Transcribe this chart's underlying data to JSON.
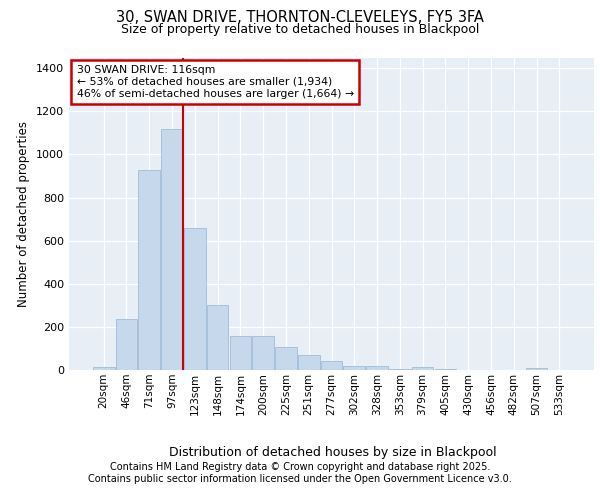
{
  "title_line1": "30, SWAN DRIVE, THORNTON-CLEVELEYS, FY5 3FA",
  "title_line2": "Size of property relative to detached houses in Blackpool",
  "xlabel": "Distribution of detached houses by size in Blackpool",
  "ylabel": "Number of detached properties",
  "categories": [
    "20sqm",
    "46sqm",
    "71sqm",
    "97sqm",
    "123sqm",
    "148sqm",
    "174sqm",
    "200sqm",
    "225sqm",
    "251sqm",
    "277sqm",
    "302sqm",
    "328sqm",
    "353sqm",
    "379sqm",
    "405sqm",
    "430sqm",
    "456sqm",
    "482sqm",
    "507sqm",
    "533sqm"
  ],
  "values": [
    15,
    235,
    930,
    1120,
    660,
    300,
    160,
    160,
    108,
    70,
    40,
    20,
    20,
    5,
    15,
    5,
    2,
    2,
    2,
    7,
    2
  ],
  "bar_color": "#c5d8ec",
  "bar_edge_color": "#a0bcd8",
  "bg_color": "#e8eef6",
  "grid_color": "#ffffff",
  "redline_x": 3.5,
  "annotation_title": "30 SWAN DRIVE: 116sqm",
  "annotation_line2": "← 53% of detached houses are smaller (1,934)",
  "annotation_line3": "46% of semi-detached houses are larger (1,664) →",
  "annotation_box_color": "#ffffff",
  "annotation_border_color": "#cc0000",
  "redline_color": "#cc0000",
  "ylim": [
    0,
    1450
  ],
  "yticks": [
    0,
    200,
    400,
    600,
    800,
    1000,
    1200,
    1400
  ],
  "footnote1": "Contains HM Land Registry data © Crown copyright and database right 2025.",
  "footnote2": "Contains public sector information licensed under the Open Government Licence v3.0."
}
